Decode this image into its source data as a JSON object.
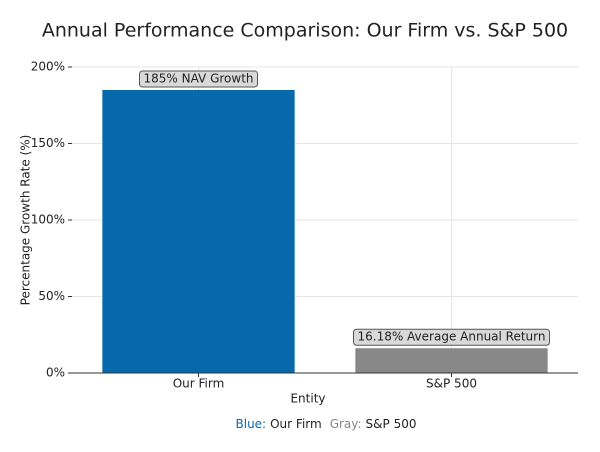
{
  "chart_data": {
    "type": "bar",
    "title": "Annual Performance Comparison: Our Firm vs. S&P 500",
    "x_label": "Entity",
    "y_label": "Percentage Growth Rate (%)",
    "categories": [
      "Our Firm",
      "S&P 500"
    ],
    "values": [
      185,
      16.18
    ],
    "value_labels": [
      "185% NAV Growth",
      "16.18% Average Annual Return"
    ],
    "colors": [
      "#0868ac",
      "#888888"
    ],
    "ylim": [
      0,
      200
    ],
    "yticks": [
      {
        "value": 0,
        "label": "0%"
      },
      {
        "value": 50,
        "label": "50%"
      },
      {
        "value": 100,
        "label": "100%"
      },
      {
        "value": 150,
        "label": "150%"
      },
      {
        "value": 200,
        "label": "200%"
      }
    ],
    "grid": true,
    "legend": [
      {
        "key": "Blue:",
        "name": "Our Firm"
      },
      {
        "key": "Gray:",
        "name": "S&P 500"
      }
    ]
  }
}
